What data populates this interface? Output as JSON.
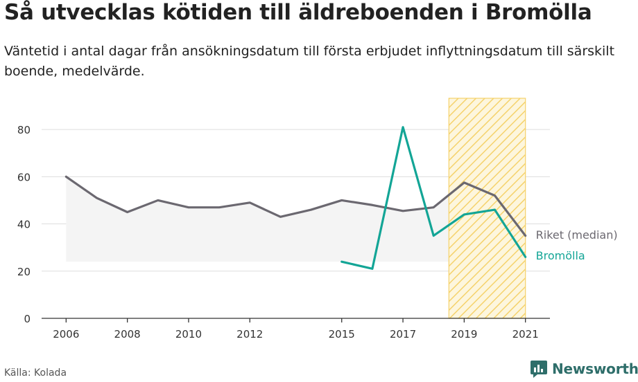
{
  "title": "Så utvecklas kötiden till äldreboenden i Bromölla",
  "subtitle": "Väntetid i antal dagar från ansökningsdatum till första erbjudet inflyttningsdatum till särskilt boende, medelvärde.",
  "source": "Källa: Kolada",
  "brand": "Newsworthy",
  "colors": {
    "riket": "#6b6870",
    "bromolla": "#13a596",
    "highlight": "#f5d26b",
    "grid": "#dddddd",
    "band": "#eeeeee"
  },
  "chart_data": {
    "type": "line",
    "ylim": [
      0,
      90
    ],
    "xlim": [
      2005.2,
      2021.8
    ],
    "yticks": [
      "0",
      "20",
      "40",
      "60",
      "80"
    ],
    "xticks": [
      "2006",
      "2008",
      "2010",
      "2012",
      "2015",
      "2017",
      "2019",
      "2021"
    ],
    "highlight_range": [
      2018.5,
      2021
    ],
    "series": [
      {
        "name": "Riket (median)",
        "x": [
          2006,
          2007,
          2008,
          2009,
          2010,
          2011,
          2012,
          2013,
          2014,
          2015,
          2016,
          2017,
          2018,
          2019,
          2020,
          2021
        ],
        "y": [
          60,
          51,
          45,
          50,
          47,
          47,
          49,
          43,
          46,
          50,
          48,
          45.5,
          47,
          57.5,
          52,
          35
        ]
      },
      {
        "name": "Bromölla",
        "x": [
          2015,
          2016,
          2017,
          2018,
          2019,
          2020,
          2021
        ],
        "y": [
          24,
          21,
          81,
          35,
          44,
          46,
          26
        ]
      }
    ]
  }
}
